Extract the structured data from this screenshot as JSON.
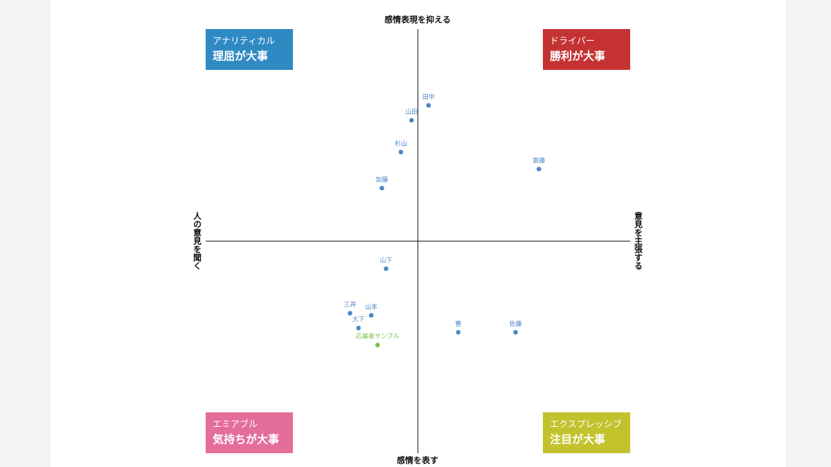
{
  "chart_data": {
    "type": "scatter",
    "top_label": "感情表現を抑える",
    "bottom_label": "感情を表す",
    "left_label": "人の意見を聞く",
    "right_label": "意見を主張する",
    "xlim": [
      -10,
      10
    ],
    "ylim": [
      -10,
      10
    ],
    "quadrants": [
      {
        "subtitle": "アナリティカル",
        "title": "理屈が大事",
        "color": "#2f8ac4",
        "corner": "top-left"
      },
      {
        "subtitle": "ドライバー",
        "title": "勝利が大事",
        "color": "#c53233",
        "corner": "top-right"
      },
      {
        "subtitle": "エミアブル",
        "title": "気持ちが大事",
        "color": "#e46d9a",
        "corner": "bottom-left"
      },
      {
        "subtitle": "エクスプレッシブ",
        "title": "注目が大事",
        "color": "#c2c22d",
        "corner": "bottom-right"
      }
    ],
    "series": [
      {
        "color": "#4a86c8",
        "labels": [
          "田中",
          "山田",
          "杉山",
          "齋藤",
          "加藤",
          "山下",
          "三井",
          "山本",
          "大下",
          "曹",
          "佐藤"
        ],
        "x": [
          0.5,
          -0.3,
          -0.8,
          5.7,
          -1.7,
          -1.5,
          -3.2,
          -2.2,
          -2.8,
          1.9,
          4.6
        ],
        "values": [
          6.4,
          5.7,
          4.2,
          3.4,
          2.5,
          -1.3,
          -3.4,
          -3.5,
          -4.1,
          -4.3,
          -4.3
        ]
      },
      {
        "color": "#7cc242",
        "labels": [
          "応募者サンプル"
        ],
        "x": [
          -1.9
        ],
        "values": [
          -4.9
        ]
      }
    ]
  }
}
